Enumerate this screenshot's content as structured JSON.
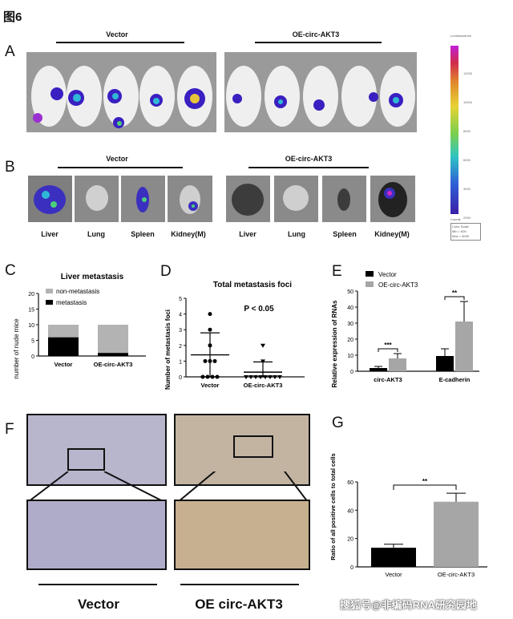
{
  "figure_title": "图6",
  "panel_letters": {
    "a": "A",
    "b": "B",
    "c": "C",
    "d": "D",
    "e": "E",
    "f": "F",
    "g": "G"
  },
  "panel_a": {
    "group_left": "Vector",
    "group_right": "OE-circ-AKT3",
    "colorbar_title": "Luminescence",
    "colorbar_ticks": [
      "12000",
      "10000",
      "8000",
      "6000",
      "4000",
      "2000"
    ],
    "colorbar_footer": "Counts",
    "colorbar_scale": [
      "Color Scale",
      "Min = 600",
      "Max = 5000"
    ]
  },
  "panel_b": {
    "group_left": "Vector",
    "group_right": "OE-circ-AKT3",
    "organs_left": [
      "Liver",
      "Lung",
      "Spleen",
      "Kidney(M)"
    ],
    "organs_right": [
      "Liver",
      "Lung",
      "Spleen",
      "Kidney(M)"
    ]
  },
  "chart_data": [
    {
      "id": "C",
      "type": "bar",
      "stacked": true,
      "title": "Liver metastasis",
      "ylabel": "number of nude mice",
      "xlabel": "",
      "categories": [
        "Vector",
        "OE-circ-AKT3"
      ],
      "ylim": [
        0,
        20
      ],
      "yticks": [
        "0",
        "5",
        "10",
        "15",
        "20"
      ],
      "series": [
        {
          "name": "metastasis",
          "values": [
            6,
            1
          ],
          "color": "#000000"
        },
        {
          "name": "non-metastasis",
          "values": [
            4,
            9
          ],
          "color": "#b3b3b3"
        }
      ],
      "legend": [
        "non-metastasis",
        "metastasis"
      ]
    },
    {
      "id": "D",
      "type": "scatter",
      "title": "Total metastasis foci",
      "ylabel": "Number of metastasis foci",
      "annotation": "P < 0.05",
      "categories": [
        "Vector",
        "OE-circ-AKT3"
      ],
      "ylim": [
        0,
        5
      ],
      "yticks": [
        "0",
        "1",
        "2",
        "3",
        "4",
        "5"
      ],
      "series": [
        {
          "name": "Vector",
          "values": [
            4,
            3,
            2,
            1,
            1,
            1,
            0,
            0,
            0,
            0
          ],
          "mean": 1.4,
          "sd": 1.4
        },
        {
          "name": "OE-circ-AKT3",
          "values": [
            2,
            1,
            0,
            0,
            0,
            0,
            0,
            0,
            0,
            0
          ],
          "mean": 0.3,
          "sd": 0.65
        }
      ]
    },
    {
      "id": "E",
      "type": "bar",
      "title": "",
      "ylabel": "Relative expression of RNAs",
      "categories": [
        "circ-AKT3",
        "E-cadherin"
      ],
      "ylim": [
        0,
        50
      ],
      "yticks": [
        "0",
        "10",
        "20",
        "30",
        "40",
        "50"
      ],
      "series": [
        {
          "name": "Vector",
          "values": [
            2,
            9.5
          ],
          "errors": [
            1,
            4.5
          ],
          "color": "#000000"
        },
        {
          "name": "OE-circ-AKT3",
          "values": [
            8,
            31
          ],
          "errors": [
            3,
            12.5
          ],
          "color": "#a6a6a6"
        }
      ],
      "significance": [
        "***",
        "**"
      ]
    },
    {
      "id": "G",
      "type": "bar",
      "title": "",
      "ylabel": "Ratio of all positive cells to total cells",
      "categories": [
        "Vector",
        "OE-circ-AKT3"
      ],
      "ylim": [
        0,
        60
      ],
      "yticks": [
        "0",
        "20",
        "40",
        "60"
      ],
      "series": [
        {
          "name": "ratio",
          "values": [
            13.5,
            46
          ],
          "errors": [
            2.5,
            6
          ],
          "colors": [
            "#000000",
            "#a6a6a6"
          ]
        }
      ],
      "significance": [
        "**"
      ]
    }
  ],
  "panel_f": {
    "label_left": "Vector",
    "label_right": "OE circ-AKT3"
  },
  "watermark": "搜狐号@非编码RNA研究园地"
}
